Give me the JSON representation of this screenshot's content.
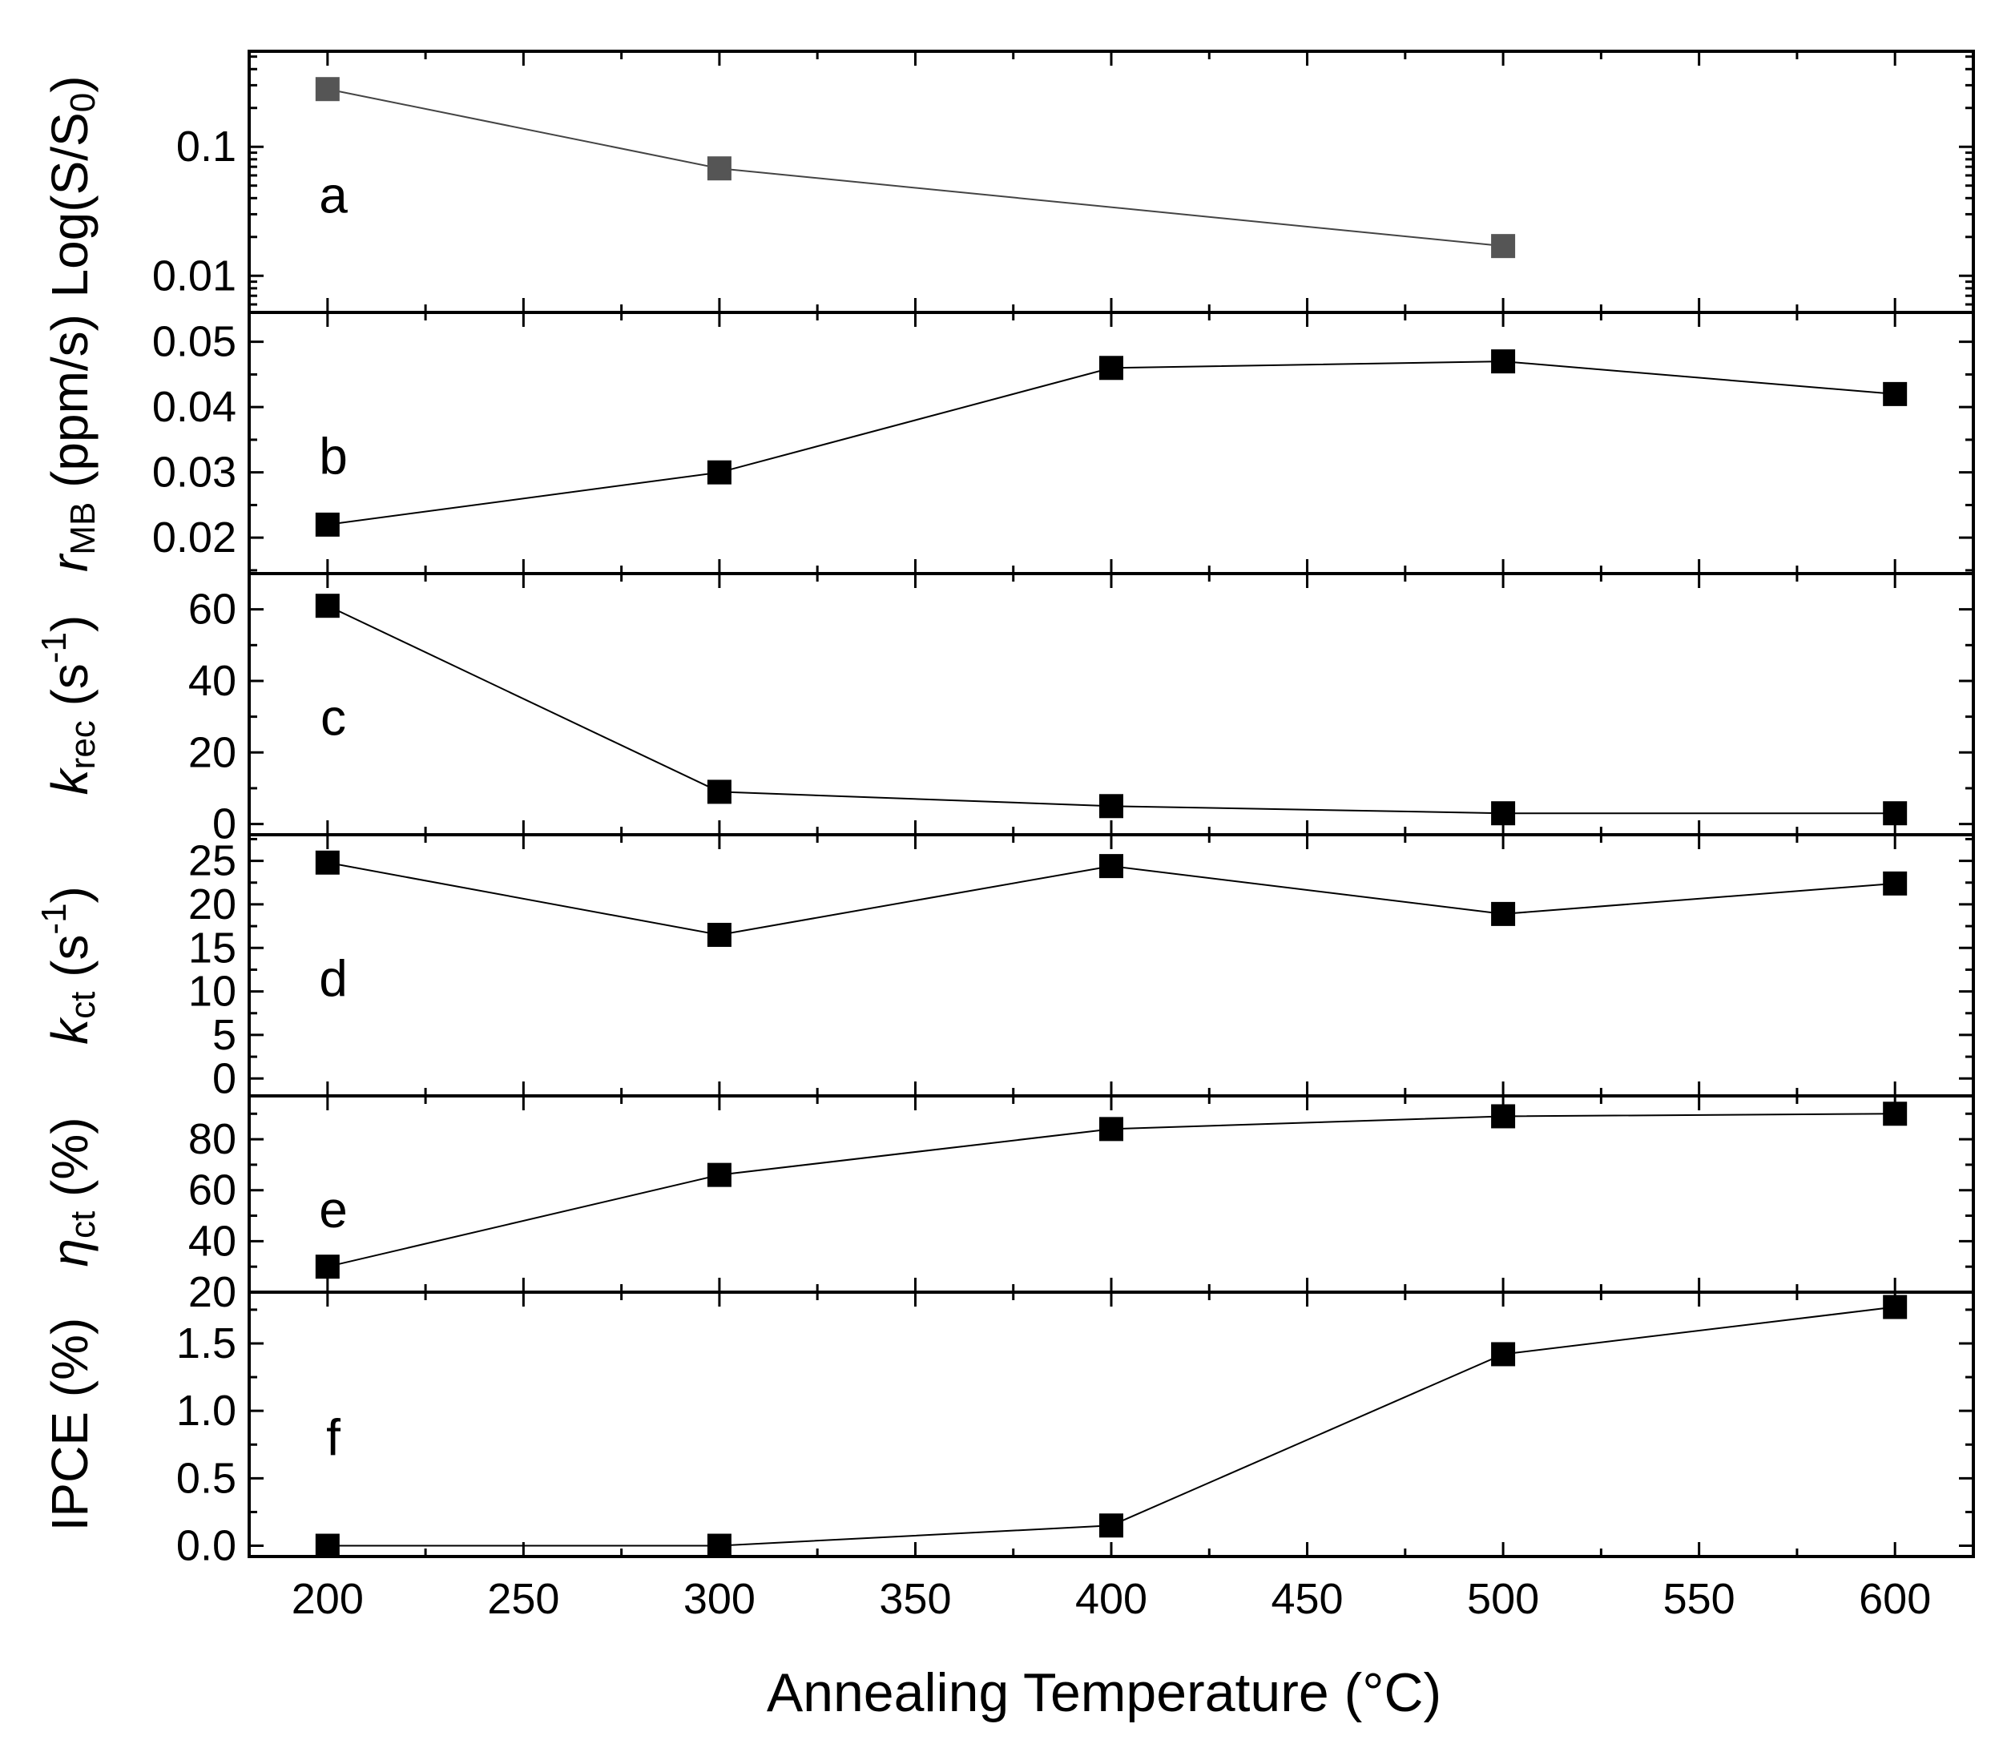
{
  "chart_data": {
    "type": "line",
    "shared_x_axis": {
      "label": "Annealing Temperature (°C)",
      "range": [
        180,
        620
      ],
      "ticks": [
        200,
        250,
        300,
        350,
        400,
        450,
        500,
        550,
        600
      ],
      "tick_labels": [
        "200",
        "250",
        "300",
        "350",
        "400",
        "450",
        "500",
        "550",
        "600"
      ]
    },
    "panels": [
      {
        "letter": "a",
        "ylabel": "Log(S/S0)",
        "yscale": "log",
        "ylim": [
          0.0052,
          0.55
        ],
        "ticks": [
          0.01,
          0.1
        ],
        "tick_labels": [
          "0.01",
          "0.1"
        ],
        "x": [
          200,
          300,
          500
        ],
        "values": [
          0.28,
          0.068,
          0.017
        ],
        "color": "#555555"
      },
      {
        "letter": "b",
        "ylabel": "rMB (ppm/s)",
        "yscale": "linear",
        "ylim": [
          0.0145,
          0.0545
        ],
        "ticks": [
          0.02,
          0.03,
          0.04,
          0.05
        ],
        "tick_labels": [
          "0.02",
          "0.03",
          "0.04",
          "0.05"
        ],
        "x": [
          200,
          300,
          400,
          500,
          600
        ],
        "values": [
          0.022,
          0.03,
          0.046,
          0.047,
          0.042
        ],
        "color": "#000000"
      },
      {
        "letter": "c",
        "ylabel": "krec (s-1)",
        "yscale": "linear",
        "ylim": [
          -3,
          70
        ],
        "ticks": [
          0,
          20,
          40,
          60
        ],
        "tick_labels": [
          "0",
          "20",
          "40",
          "60"
        ],
        "x": [
          200,
          300,
          400,
          500,
          600
        ],
        "values": [
          61,
          9,
          5,
          3,
          3
        ],
        "color": "#000000"
      },
      {
        "letter": "d",
        "ylabel": "kct (s-1)",
        "yscale": "linear",
        "ylim": [
          -2,
          28
        ],
        "ticks": [
          0,
          5,
          10,
          15,
          20,
          25
        ],
        "tick_labels": [
          "0",
          "5",
          "10",
          "15",
          "20",
          "25"
        ],
        "x": [
          200,
          300,
          400,
          500,
          600
        ],
        "values": [
          24.8,
          16.5,
          24.4,
          18.9,
          22.4
        ],
        "color": "#000000"
      },
      {
        "letter": "e",
        "ylabel": "ηct (%)",
        "yscale": "linear",
        "ylim": [
          20,
          97
        ],
        "ticks": [
          20,
          40,
          60,
          80
        ],
        "tick_labels": [
          "20",
          "40",
          "60",
          "80"
        ],
        "x": [
          200,
          300,
          400,
          500,
          600
        ],
        "values": [
          30,
          66,
          84,
          89,
          90
        ],
        "color": "#000000"
      },
      {
        "letter": "f",
        "ylabel": "IPCE (%)",
        "yscale": "linear",
        "ylim": [
          -0.08,
          1.88
        ],
        "ticks": [
          0.0,
          0.5,
          1.0,
          1.5
        ],
        "tick_labels": [
          "0.0",
          "0.5",
          "1.0",
          "1.5"
        ],
        "x": [
          200,
          300,
          400,
          500,
          600
        ],
        "values": [
          0.0,
          0.0,
          0.15,
          1.42,
          1.77
        ],
        "color": "#000000"
      }
    ]
  },
  "ylabels": {
    "a": {
      "main": "Log(S/S",
      "sub": "0",
      "tail": ")"
    },
    "b": {
      "main": "r",
      "sub": "MB",
      "tail": " (ppm/s)"
    },
    "c": {
      "main": "k",
      "sub": "rec",
      "tail": " (s",
      "sup": "-1",
      "tail2": ")"
    },
    "d": {
      "main": "k",
      "sub": "ct",
      "tail": " (s",
      "sup": "-1",
      "tail2": ")"
    },
    "e": {
      "main": "η",
      "sub": "ct",
      "tail": " (%)"
    },
    "f": {
      "main": "IPCE (%)"
    }
  }
}
